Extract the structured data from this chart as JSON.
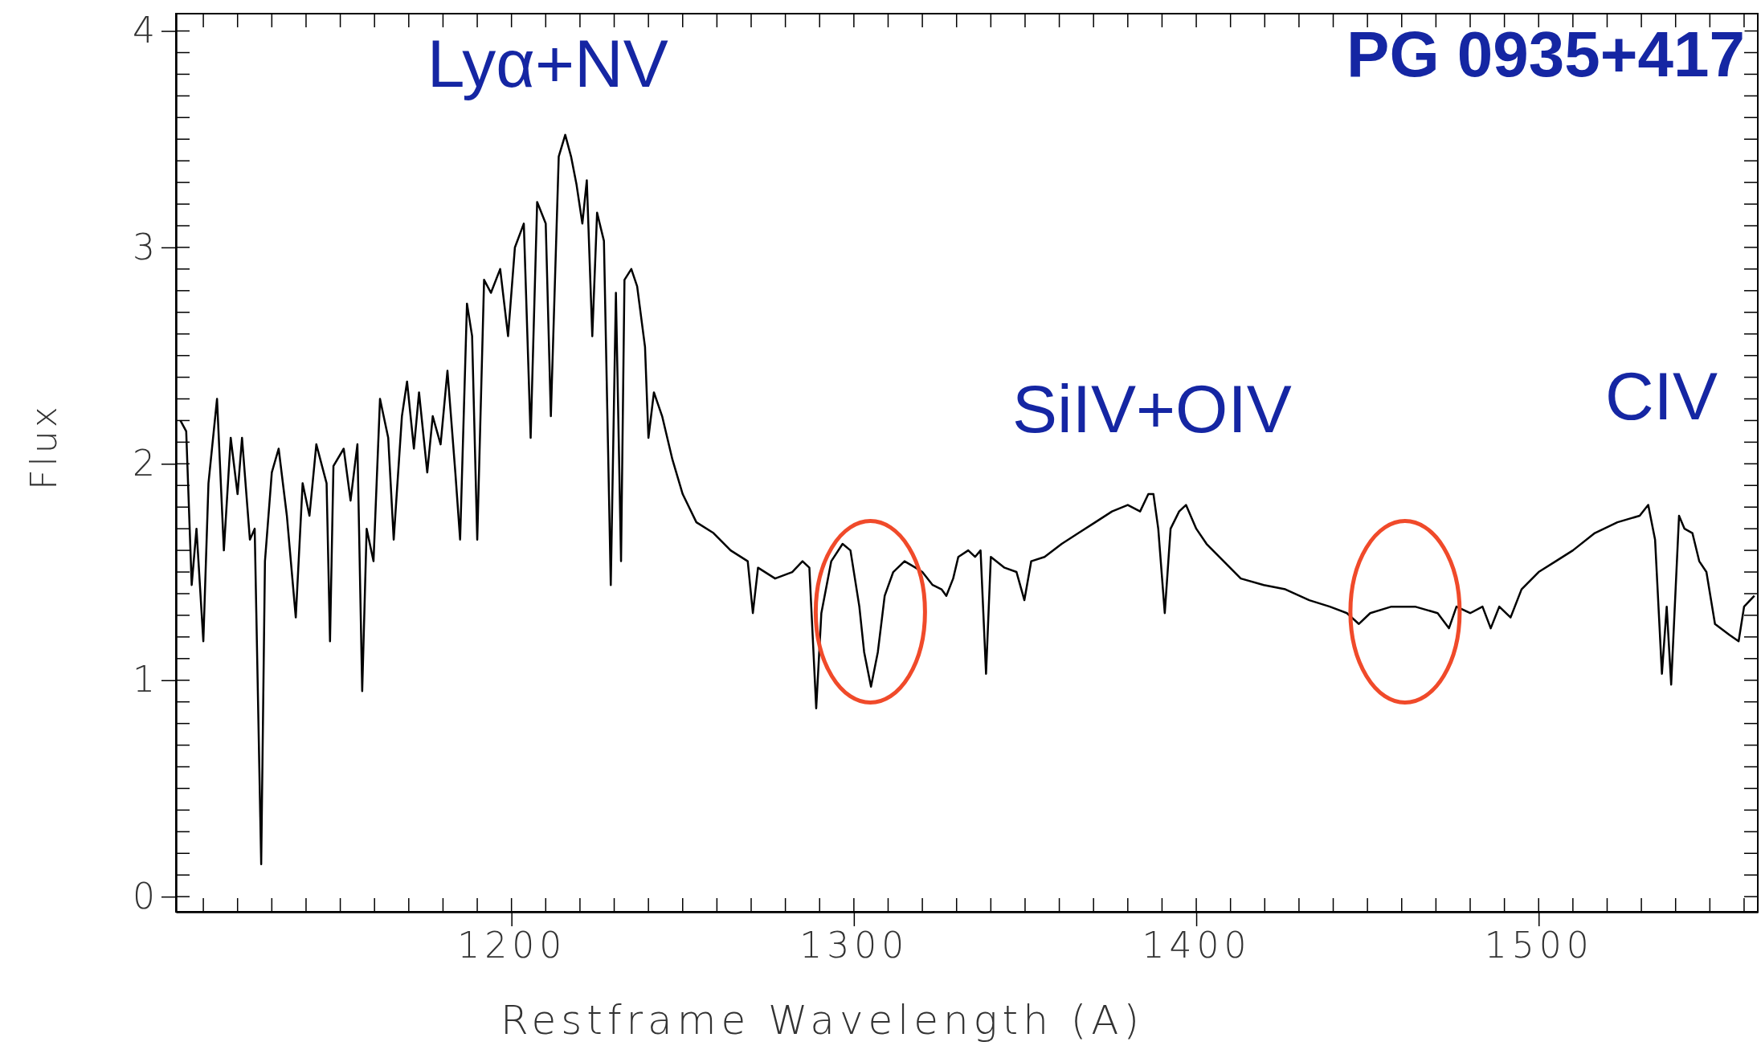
{
  "chart_data": {
    "type": "line",
    "title": "PG 0935+417",
    "xlabel": "Restframe Wavelength (A)",
    "ylabel": "Flux",
    "color": "#000000",
    "xlim": [
      1102,
      1564
    ],
    "ylim": [
      -0.07,
      4.08
    ],
    "xticks": [
      1200,
      1300,
      1400,
      1500
    ],
    "yticks": [
      0,
      1,
      2,
      3,
      4
    ],
    "annotations": [
      "Lyα+NV",
      "SiIV+OIV",
      "CIV"
    ],
    "x": [
      1103.3,
      1105,
      1106.6,
      1108,
      1110,
      1111.5,
      1114,
      1116,
      1118,
      1120,
      1121.3,
      1123.6,
      1125,
      1126.9,
      1128,
      1130,
      1132,
      1134.4,
      1137,
      1139,
      1141,
      1143,
      1146,
      1147,
      1148,
      1151,
      1153,
      1155,
      1156.4,
      1157.7,
      1159.7,
      1161.6,
      1164,
      1165.6,
      1168,
      1169.5,
      1171.5,
      1173,
      1175.4,
      1177,
      1179.3,
      1181.3,
      1183.6,
      1185,
      1187,
      1188.5,
      1190,
      1192,
      1194,
      1196.7,
      1199,
      1201,
      1203.6,
      1205.6,
      1207.5,
      1210,
      1211.5,
      1213.8,
      1215.7,
      1217.4,
      1219,
      1220.7,
      1222,
      1223.6,
      1225,
      1227,
      1229,
      1230.5,
      1232,
      1233,
      1235,
      1236.7,
      1239,
      1240,
      1241.6,
      1244,
      1247,
      1250,
      1254,
      1259,
      1264,
      1269,
      1270.5,
      1272,
      1277,
      1282,
      1285,
      1287,
      1289,
      1290.5,
      1293.4,
      1296.7,
      1299,
      1301.6,
      1303,
      1305,
      1307,
      1309,
      1311.5,
      1314.8,
      1318,
      1320,
      1323,
      1325.6,
      1327,
      1329,
      1330.5,
      1333.4,
      1335.4,
      1337,
      1338.6,
      1340,
      1344,
      1347.5,
      1349.8,
      1351.8,
      1355.7,
      1360.7,
      1365.6,
      1370.5,
      1375.4,
      1380,
      1383.6,
      1386,
      1387.5,
      1388.9,
      1390.8,
      1392.5,
      1395,
      1397,
      1400,
      1403,
      1408,
      1413,
      1419.7,
      1426,
      1433,
      1439,
      1444,
      1447.5,
      1450.8,
      1457,
      1463.9,
      1470.5,
      1473.8,
      1476,
      1480,
      1483.6,
      1486,
      1488.5,
      1491.8,
      1495,
      1500,
      1505,
      1510,
      1516.4,
      1523,
      1529.5,
      1532,
      1534,
      1536,
      1537.4,
      1538.7,
      1541,
      1542.6,
      1544.9,
      1546.9,
      1549,
      1551.5,
      1555.7,
      1558.4,
      1560,
      1563
    ],
    "values": [
      2.2,
      2.15,
      1.44,
      1.7,
      1.18,
      1.91,
      2.3,
      1.6,
      2.12,
      1.86,
      2.12,
      1.65,
      1.7,
      0.15,
      1.55,
      1.96,
      2.07,
      1.76,
      1.29,
      1.91,
      1.76,
      2.09,
      1.91,
      1.18,
      1.99,
      2.07,
      1.83,
      2.09,
      0.95,
      1.7,
      1.55,
      2.3,
      2.12,
      1.65,
      2.22,
      2.38,
      2.07,
      2.33,
      1.96,
      2.22,
      2.09,
      2.43,
      1.96,
      1.65,
      2.74,
      2.59,
      1.65,
      2.85,
      2.79,
      2.9,
      2.59,
      3.0,
      3.11,
      2.12,
      3.21,
      3.11,
      2.22,
      3.42,
      3.52,
      3.42,
      3.29,
      3.11,
      3.31,
      2.59,
      3.16,
      3.03,
      1.44,
      2.79,
      1.55,
      2.85,
      2.9,
      2.82,
      2.54,
      2.12,
      2.33,
      2.22,
      2.02,
      1.86,
      1.73,
      1.68,
      1.6,
      1.55,
      1.31,
      1.52,
      1.47,
      1.5,
      1.55,
      1.52,
      0.87,
      1.31,
      1.55,
      1.63,
      1.6,
      1.34,
      1.13,
      0.97,
      1.13,
      1.39,
      1.5,
      1.55,
      1.52,
      1.5,
      1.44,
      1.42,
      1.39,
      1.47,
      1.57,
      1.6,
      1.57,
      1.6,
      1.03,
      1.57,
      1.52,
      1.5,
      1.37,
      1.55,
      1.57,
      1.63,
      1.68,
      1.73,
      1.78,
      1.81,
      1.78,
      1.86,
      1.86,
      1.7,
      1.31,
      1.7,
      1.78,
      1.81,
      1.7,
      1.63,
      1.55,
      1.47,
      1.44,
      1.42,
      1.37,
      1.34,
      1.31,
      1.26,
      1.31,
      1.34,
      1.34,
      1.31,
      1.24,
      1.34,
      1.31,
      1.34,
      1.24,
      1.34,
      1.29,
      1.42,
      1.5,
      1.55,
      1.6,
      1.68,
      1.73,
      1.76,
      1.81,
      1.65,
      1.03,
      1.34,
      0.98,
      1.76,
      1.7,
      1.68,
      1.55,
      1.5,
      1.26,
      1.21,
      1.18,
      1.34,
      1.39
    ]
  }
}
